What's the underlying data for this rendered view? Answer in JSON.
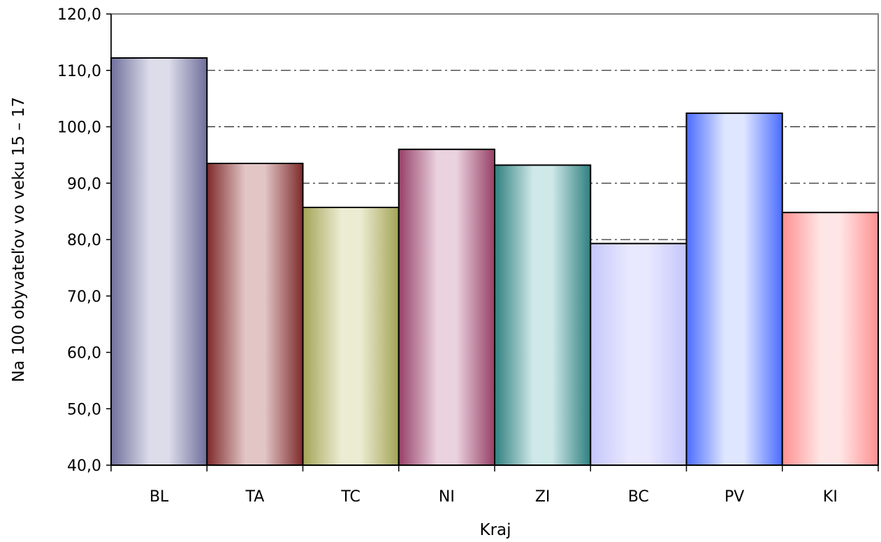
{
  "chart_data": {
    "type": "bar",
    "categories": [
      "BL",
      "TA",
      "TC",
      "NI",
      "ZI",
      "BC",
      "PV",
      "KI"
    ],
    "values": [
      112.2,
      93.5,
      85.7,
      96.0,
      93.2,
      79.3,
      102.4,
      84.8
    ],
    "xlabel": "Kraj",
    "ylabel": "Na 100 obyvateľov vo veku 15 – 17",
    "ylim": [
      40,
      120
    ],
    "yticks": [
      "40,0",
      "50,0",
      "60,0",
      "70,0",
      "80,0",
      "90,0",
      "100,0",
      "110,0",
      "120,0"
    ],
    "grid": true,
    "bar_colors": [
      {
        "edge": "#6f6f9c",
        "center": "#dcdcea"
      },
      {
        "edge": "#7e2a2a",
        "center": "#e2c6c6"
      },
      {
        "edge": "#a3a356",
        "center": "#ececd2"
      },
      {
        "edge": "#963f66",
        "center": "#ead2df"
      },
      {
        "edge": "#2f7f7f",
        "center": "#cfe8e8"
      },
      {
        "edge": "#c6c6fc",
        "center": "#e8e8ff"
      },
      {
        "edge": "#4a6cff",
        "center": "#dfe6ff"
      },
      {
        "edge": "#ff9090",
        "center": "#ffe6e6"
      }
    ]
  }
}
